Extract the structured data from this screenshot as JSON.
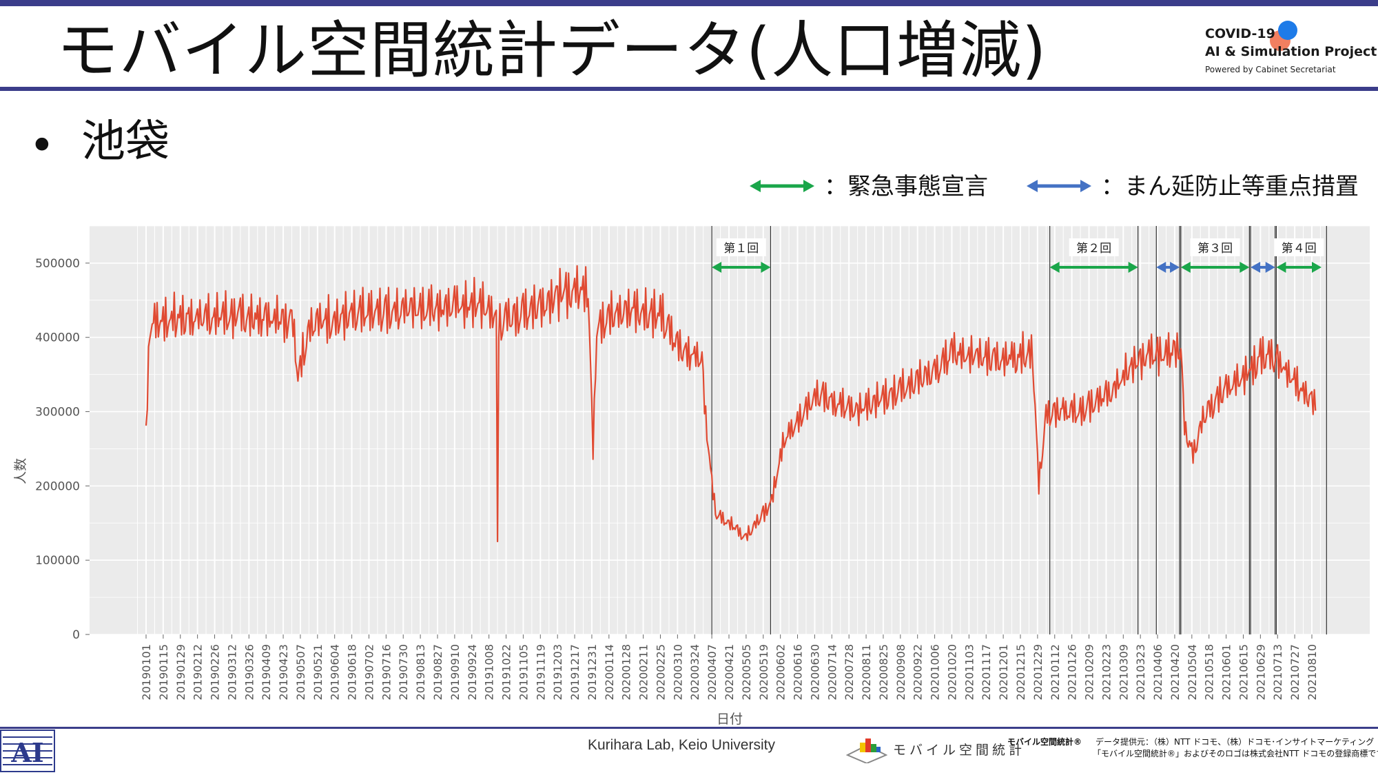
{
  "slide": {
    "title": "モバイル空間統計データ(人口増減)",
    "bullet": "•",
    "bullet_text": "池袋",
    "legend_emergency": "：緊急事態宣言",
    "legend_priority": "：まん延防止等重点措置",
    "colors": {
      "accent": "#3b3d8a",
      "emergency": "#1aa64a",
      "priority": "#4472c4",
      "line": "#e04a32",
      "plot_bg": "#ebebeb"
    }
  },
  "logo": {
    "line1": "COVID-19",
    "line2": "AI & Simulation Project",
    "line3": "Powered by Cabinet Secretariat"
  },
  "footer": {
    "lab": "Kurihara Lab, Keio University",
    "mobile_logo_text": "モバイル空間統計",
    "mobile_reg": "モバイル空間統計®",
    "credit1": "データ提供元：（株）NTT ドコモ、（株）ドコモ･インサイトマーケティング",
    "credit2": "「モバイル空間統計®」およびそのロゴは株式会社NTT ドコモの登録商標です。"
  },
  "chart_data": {
    "type": "line",
    "xlabel": "日付",
    "ylabel": "人数",
    "ylim": [
      0,
      550000
    ],
    "yticks": [
      0,
      100000,
      200000,
      300000,
      400000,
      500000
    ],
    "grid": true,
    "x_range": [
      "20190101",
      "20210813"
    ],
    "xticks": [
      "20190101",
      "20190115",
      "20190129",
      "20190212",
      "20190226",
      "20190312",
      "20190326",
      "20190409",
      "20190423",
      "20190507",
      "20190521",
      "20190604",
      "20190618",
      "20190702",
      "20190716",
      "20190730",
      "20190813",
      "20190827",
      "20190910",
      "20190924",
      "20191008",
      "20191022",
      "20191105",
      "20191119",
      "20191203",
      "20191217",
      "20191231",
      "20200114",
      "20200128",
      "20200211",
      "20200225",
      "20200310",
      "20200324",
      "20200407",
      "20200421",
      "20200505",
      "20200519",
      "20200602",
      "20200616",
      "20200630",
      "20200714",
      "20200728",
      "20200811",
      "20200825",
      "20200908",
      "20200922",
      "20201006",
      "20201020",
      "20201103",
      "20201117",
      "20201201",
      "20201215",
      "20201229",
      "20210112",
      "20210126",
      "20210209",
      "20210223",
      "20210309",
      "20210323",
      "20210406",
      "20210420",
      "20210504",
      "20210518",
      "20210601",
      "20210615",
      "20210629",
      "20210713",
      "20210727",
      "20210810"
    ],
    "anchors": [
      {
        "date": "20190101",
        "value": 270000
      },
      {
        "date": "20190104",
        "value": 420000
      },
      {
        "date": "20190120",
        "value": 425000
      },
      {
        "date": "20190301",
        "value": 430000
      },
      {
        "date": "20190501",
        "value": 425000
      },
      {
        "date": "20190505",
        "value": 350000
      },
      {
        "date": "20190515",
        "value": 420000
      },
      {
        "date": "20190801",
        "value": 440000
      },
      {
        "date": "20191001",
        "value": 445000
      },
      {
        "date": "20191014",
        "value": 430000
      },
      {
        "date": "20191015",
        "value": 120000
      },
      {
        "date": "20191016",
        "value": 420000
      },
      {
        "date": "20191201",
        "value": 455000
      },
      {
        "date": "20191228",
        "value": 470000
      },
      {
        "date": "20200101",
        "value": 245000
      },
      {
        "date": "20200104",
        "value": 420000
      },
      {
        "date": "20200201",
        "value": 440000
      },
      {
        "date": "20200225",
        "value": 430000
      },
      {
        "date": "20200310",
        "value": 390000
      },
      {
        "date": "20200330",
        "value": 370000
      },
      {
        "date": "20200403",
        "value": 270000
      },
      {
        "date": "20200410",
        "value": 165000
      },
      {
        "date": "20200425",
        "value": 145000
      },
      {
        "date": "20200505",
        "value": 130000
      },
      {
        "date": "20200515",
        "value": 155000
      },
      {
        "date": "20200525",
        "value": 175000
      },
      {
        "date": "20200605",
        "value": 260000
      },
      {
        "date": "20200620",
        "value": 300000
      },
      {
        "date": "20200701",
        "value": 325000
      },
      {
        "date": "20200801",
        "value": 300000
      },
      {
        "date": "20200901",
        "value": 325000
      },
      {
        "date": "20201010",
        "value": 360000
      },
      {
        "date": "20201020",
        "value": 380000
      },
      {
        "date": "20201110",
        "value": 375000
      },
      {
        "date": "20201201",
        "value": 370000
      },
      {
        "date": "20201225",
        "value": 380000
      },
      {
        "date": "20201230",
        "value": 200000
      },
      {
        "date": "20210105",
        "value": 300000
      },
      {
        "date": "20210201",
        "value": 300000
      },
      {
        "date": "20210301",
        "value": 330000
      },
      {
        "date": "20210320",
        "value": 370000
      },
      {
        "date": "20210415",
        "value": 380000
      },
      {
        "date": "20210425",
        "value": 390000
      },
      {
        "date": "20210428",
        "value": 280000
      },
      {
        "date": "20210505",
        "value": 240000
      },
      {
        "date": "20210515",
        "value": 300000
      },
      {
        "date": "20210601",
        "value": 330000
      },
      {
        "date": "20210620",
        "value": 355000
      },
      {
        "date": "20210701",
        "value": 380000
      },
      {
        "date": "20210715",
        "value": 365000
      },
      {
        "date": "20210801",
        "value": 330000
      },
      {
        "date": "20210813",
        "value": 310000
      }
    ],
    "periods": [
      {
        "label": "第１回",
        "kind": "emergency",
        "start": "20200407",
        "end": "20200525"
      },
      {
        "label": "第２回",
        "kind": "emergency",
        "start": "20210108",
        "end": "20210321"
      },
      {
        "label": "",
        "kind": "priority",
        "start": "20210405",
        "end": "20210424"
      },
      {
        "label": "第３回",
        "kind": "emergency",
        "start": "20210425",
        "end": "20210620"
      },
      {
        "label": "",
        "kind": "priority",
        "start": "20210621",
        "end": "20210711"
      },
      {
        "label": "第４回",
        "kind": "emergency",
        "start": "20210712",
        "end": "20210822"
      }
    ]
  }
}
